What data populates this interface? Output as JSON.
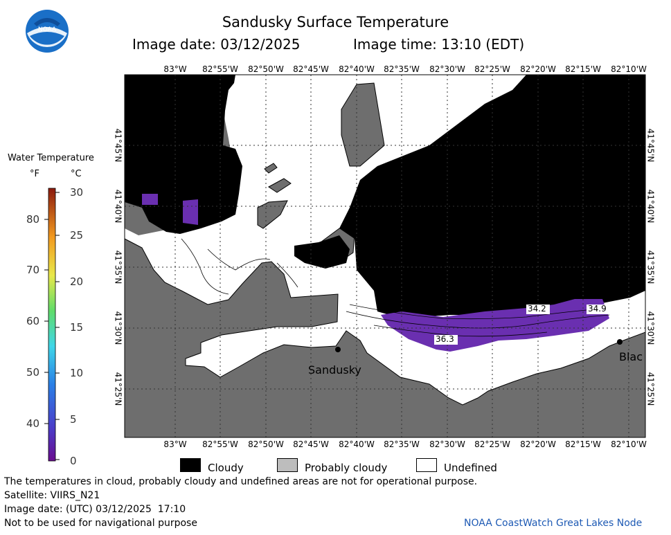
{
  "header": {
    "logo_text": "NOAA",
    "title": "Sandusky Surface Temperature",
    "date_label": "Image date: 03/12/2025",
    "time_label": "Image time: 13:10 (EDT)"
  },
  "legend_bar": {
    "title": "Water Temperature",
    "unit_f": "°F",
    "unit_c": "°C",
    "f_ticks": [
      "80",
      "70",
      "60",
      "50",
      "40"
    ],
    "c_ticks": [
      "30",
      "25",
      "20",
      "15",
      "10",
      "5",
      "0"
    ]
  },
  "axes": {
    "longitudes": [
      "83°W",
      "82°55'W",
      "82°50'W",
      "82°45'W",
      "82°40'W",
      "82°35'W",
      "82°30'W",
      "82°25'W",
      "82°20'W",
      "82°15'W",
      "82°10'W"
    ],
    "latitudes": [
      "41°45'N",
      "41°40'N",
      "41°35'N",
      "41°30'N",
      "41°25'N"
    ]
  },
  "places": {
    "sandusky": "Sandusky",
    "blac": "Blac"
  },
  "temps": {
    "t1": "34.2",
    "t2": "34.9",
    "t3": "36.3"
  },
  "key": {
    "cloudy": "Cloudy",
    "probably_cloudy": "Probably cloudy",
    "undefined": "Undefined"
  },
  "footer": {
    "disclaimer": "The temperatures in cloud, probably cloudy and undefined areas are not for operational purpose.",
    "satellite": "Satellite: VIIRS_N21",
    "utc_date": "Image date: (UTC) 03/12/2025  17:10",
    "nav_warning": "Not to be used for navigational purpose",
    "credit": "NOAA CoastWatch Great Lakes Node"
  },
  "colors": {
    "land": "#6e6e6e",
    "cloud": "#000000",
    "probably_cloud": "#6e6e6e",
    "undefined": "#ffffff",
    "water_cold": "#6a2fb0",
    "credit": "#1e5ab4"
  }
}
